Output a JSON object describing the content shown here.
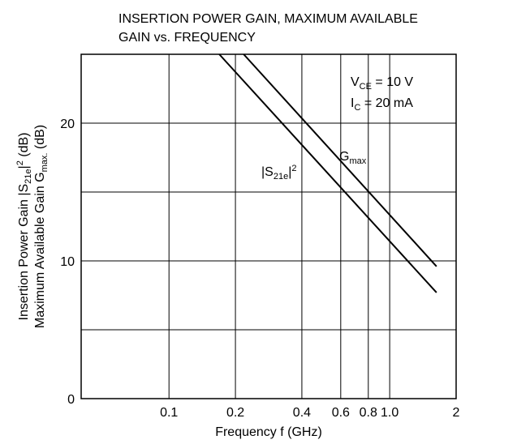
{
  "chart_data": {
    "type": "line",
    "title": [
      "INSERTION POWER GAIN, MAXIMUM AVAILABLE",
      "GAIN vs. FREQUENCY"
    ],
    "xlabel": "Frequency  f  (GHz)",
    "ylabel": [
      [
        {
          "t": "Insertion Power Gain |S"
        },
        {
          "t": "21e",
          "sub": true
        },
        {
          "t": "|"
        },
        {
          "t": "2",
          "sup": true
        },
        {
          "t": "  (dB)"
        }
      ],
      [
        {
          "t": "Maximum Available Gain G"
        },
        {
          "t": "max.",
          "sub": true
        },
        {
          "t": "  (dB)"
        }
      ]
    ],
    "annotations": [
      [
        {
          "t": "V"
        },
        {
          "t": "CE",
          "sub": true
        },
        {
          "t": " = 10 V"
        }
      ],
      [
        {
          "t": "I"
        },
        {
          "t": "C",
          "sub": true
        },
        {
          "t": " = 20 mA"
        }
      ]
    ],
    "xscale": "log",
    "xlim": [
      0.04,
      2
    ],
    "ylim": [
      0,
      25
    ],
    "xticks": [
      0.1,
      0.2,
      0.4,
      0.6,
      0.8,
      {
        "value": 1,
        "label": "1.0"
      },
      2
    ],
    "yticks": [
      0,
      10,
      20
    ],
    "yminor": [
      5,
      15,
      25
    ],
    "grid": true,
    "series": [
      {
        "name": [
          {
            "t": "|S"
          },
          {
            "t": "21e",
            "sub": true
          },
          {
            "t": "|"
          },
          {
            "t": "2",
            "sup": true
          }
        ],
        "color": "#000000",
        "x": [
          0.169,
          1.63
        ],
        "values": [
          25,
          7.7
        ]
      },
      {
        "name": [
          {
            "t": "G"
          },
          {
            "t": "max",
            "sub": true
          }
        ],
        "color": "#000000",
        "x": [
          0.218,
          1.63
        ],
        "values": [
          25,
          9.6
        ]
      }
    ]
  }
}
